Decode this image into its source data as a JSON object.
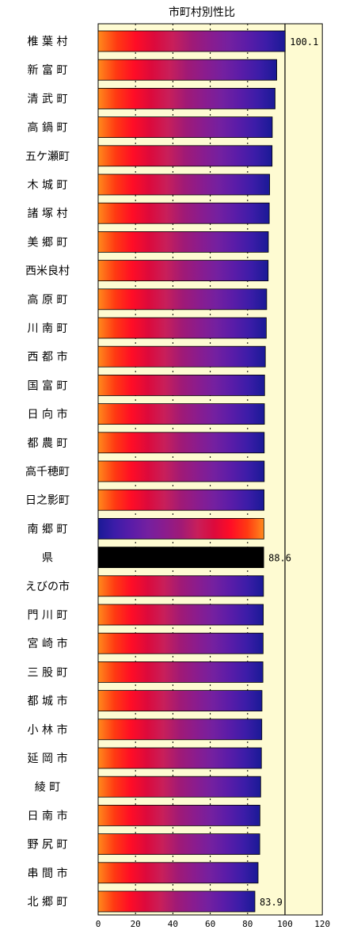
{
  "chart_data": {
    "type": "bar",
    "orientation": "horizontal",
    "title": "市町村別性比",
    "categories": [
      "椎 葉 村",
      "新 富 町",
      "清 武 町",
      "高 鍋 町",
      "五ケ瀬町",
      "木 城 町",
      "諸 塚 村",
      "美 郷 町",
      "西米良村",
      "高 原 町",
      "川 南 町",
      "西 都 市",
      "国 富 町",
      "日 向 市",
      "都 農 町",
      "高千穂町",
      "日之影町",
      "南 郷 町",
      "県",
      "えびの市",
      "門 川 町",
      "宮 崎 市",
      "三 股 町",
      "都 城 市",
      "小 林 市",
      "延 岡 市",
      "綾    町",
      "日 南 市",
      "野 尻 町",
      "串 間 市",
      "北 郷 町"
    ],
    "values": [
      100.1,
      95.6,
      94.7,
      93.2,
      93.1,
      91.8,
      91.6,
      91.1,
      91.0,
      90.2,
      90.0,
      89.5,
      89.1,
      89.0,
      88.9,
      88.9,
      88.8,
      88.7,
      88.6,
      88.5,
      88.4,
      88.3,
      88.2,
      87.7,
      87.6,
      87.4,
      87.0,
      86.6,
      86.5,
      85.6,
      83.9
    ],
    "data_labels": [
      {
        "index": 0,
        "text": "100.1"
      },
      {
        "index": 18,
        "text": "88.6"
      },
      {
        "index": 30,
        "text": "83.9"
      }
    ],
    "xlim": [
      0,
      120
    ],
    "xticks": [
      "0",
      "20",
      "40",
      "60",
      "80",
      "100",
      "120"
    ],
    "reference_line": 100,
    "highlight_index": 18,
    "reversed_gradient_index": 17,
    "colors": {
      "plot_bg": "#fefbd2",
      "highlight": "#000000",
      "gradient": [
        "#ff8a1c",
        "#ff3a12",
        "#ff0d26",
        "#dc0a3c",
        "#c81f5a",
        "#a01a76",
        "#8a1c8e",
        "#7420a0",
        "#5a1ca8",
        "#3c1ca8",
        "#1a1a96"
      ]
    }
  }
}
